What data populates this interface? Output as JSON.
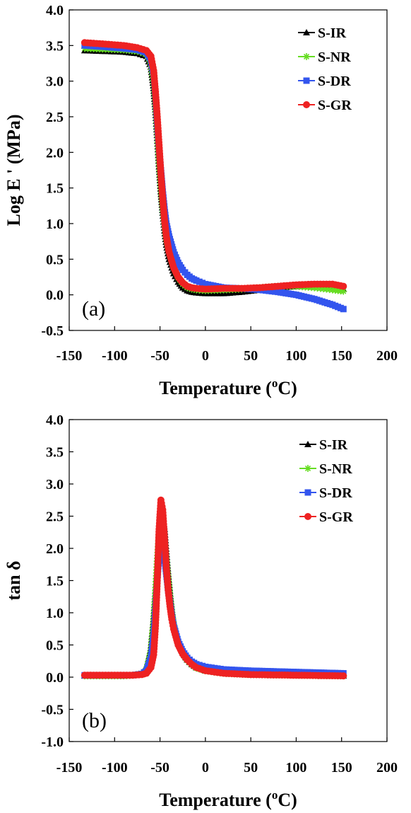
{
  "colors": {
    "S-IR": "#000000",
    "S-NR": "#66dd22",
    "S-DR": "#3355ee",
    "S-GR": "#ee2222"
  },
  "chart_data": [
    {
      "type": "scatter",
      "panel_label": "(a)",
      "xlabel": "Temperature (",
      "xlabel_sup": "o",
      "xlabel_suffix": "C)",
      "ylabel": "Log E ' (MPa)",
      "xlim": [
        -150,
        200
      ],
      "ylim": [
        -0.5,
        4.0
      ],
      "xticks": [
        -150,
        -100,
        -50,
        0,
        50,
        100,
        150,
        200
      ],
      "yticks": [
        "-0.5",
        "0.0",
        "0.5",
        "1.0",
        "1.5",
        "2.0",
        "2.5",
        "3.0",
        "3.5",
        "4.0"
      ],
      "legend_position": "top-right",
      "series": [
        {
          "name": "S-IR",
          "marker": "triangle",
          "x": [
            -133,
            -110,
            -90,
            -75,
            -65,
            -60,
            -57,
            -55,
            -53,
            -51,
            -49,
            -47,
            -45,
            -43,
            -40,
            -35,
            -30,
            -25,
            -20,
            -15,
            -10,
            0,
            20,
            40,
            60,
            80,
            100,
            120,
            140,
            152
          ],
          "y": [
            3.43,
            3.42,
            3.41,
            3.39,
            3.35,
            3.2,
            2.9,
            2.6,
            2.2,
            1.8,
            1.45,
            1.15,
            0.9,
            0.7,
            0.5,
            0.3,
            0.18,
            0.1,
            0.06,
            0.04,
            0.03,
            0.02,
            0.02,
            0.04,
            0.07,
            0.1,
            0.12,
            0.12,
            0.1,
            0.08
          ]
        },
        {
          "name": "S-NR",
          "marker": "star",
          "x": [
            -133,
            -110,
            -90,
            -75,
            -65,
            -60,
            -57,
            -55,
            -53,
            -51,
            -49,
            -47,
            -45,
            -43,
            -40,
            -35,
            -30,
            -25,
            -20,
            -15,
            -10,
            0,
            20,
            40,
            60,
            80,
            100,
            120,
            140,
            152
          ],
          "y": [
            3.46,
            3.45,
            3.44,
            3.42,
            3.38,
            3.25,
            3.0,
            2.7,
            2.3,
            1.9,
            1.55,
            1.25,
            1.0,
            0.8,
            0.6,
            0.38,
            0.24,
            0.15,
            0.1,
            0.08,
            0.07,
            0.06,
            0.07,
            0.08,
            0.1,
            0.12,
            0.12,
            0.1,
            0.07,
            0.05
          ]
        },
        {
          "name": "S-DR",
          "marker": "square",
          "x": [
            -133,
            -110,
            -90,
            -75,
            -65,
            -60,
            -57,
            -55,
            -53,
            -51,
            -49,
            -47,
            -45,
            -43,
            -40,
            -35,
            -30,
            -25,
            -20,
            -15,
            -10,
            0,
            20,
            40,
            60,
            80,
            100,
            120,
            140,
            152
          ],
          "y": [
            3.5,
            3.48,
            3.46,
            3.44,
            3.4,
            3.3,
            3.1,
            2.8,
            2.4,
            2.05,
            1.75,
            1.45,
            1.2,
            1.0,
            0.82,
            0.6,
            0.45,
            0.35,
            0.28,
            0.23,
            0.2,
            0.15,
            0.1,
            0.09,
            0.07,
            0.04,
            0.0,
            -0.06,
            -0.14,
            -0.2
          ]
        },
        {
          "name": "S-GR",
          "marker": "circle",
          "x": [
            -133,
            -110,
            -90,
            -75,
            -65,
            -60,
            -57,
            -55,
            -53,
            -51,
            -49,
            -47,
            -45,
            -43,
            -40,
            -35,
            -30,
            -25,
            -20,
            -15,
            -10,
            0,
            20,
            40,
            60,
            80,
            100,
            120,
            140,
            152
          ],
          "y": [
            3.54,
            3.52,
            3.5,
            3.47,
            3.43,
            3.35,
            3.15,
            2.85,
            2.5,
            2.1,
            1.7,
            1.35,
            1.05,
            0.82,
            0.6,
            0.38,
            0.25,
            0.17,
            0.12,
            0.1,
            0.09,
            0.08,
            0.09,
            0.09,
            0.1,
            0.12,
            0.14,
            0.15,
            0.15,
            0.12
          ]
        }
      ]
    },
    {
      "type": "scatter",
      "panel_label": "(b)",
      "xlabel": "Temperature (",
      "xlabel_sup": "o",
      "xlabel_suffix": "C)",
      "ylabel": "tan δ",
      "xlim": [
        -150,
        200
      ],
      "ylim": [
        -1.0,
        4.0
      ],
      "xticks": [
        -150,
        -100,
        -50,
        0,
        50,
        100,
        150,
        200
      ],
      "yticks": [
        "-1.0",
        "-0.5",
        "0.0",
        "0.5",
        "1.0",
        "1.5",
        "2.0",
        "2.5",
        "3.0",
        "3.5",
        "4.0"
      ],
      "legend_position": "top-right",
      "series": [
        {
          "name": "S-IR",
          "marker": "triangle",
          "x": [
            -133,
            -110,
            -90,
            -80,
            -70,
            -65,
            -60,
            -57,
            -55,
            -53,
            -51,
            -49,
            -47,
            -45,
            -43,
            -41,
            -39,
            -37,
            -35,
            -30,
            -25,
            -20,
            -15,
            -10,
            0,
            20,
            50,
            100,
            152
          ],
          "y": [
            0.02,
            0.02,
            0.02,
            0.03,
            0.06,
            0.15,
            0.45,
            0.9,
            1.3,
            1.75,
            2.2,
            2.45,
            2.5,
            2.3,
            1.95,
            1.6,
            1.3,
            1.05,
            0.85,
            0.55,
            0.38,
            0.27,
            0.2,
            0.15,
            0.1,
            0.06,
            0.04,
            0.03,
            0.02
          ]
        },
        {
          "name": "S-NR",
          "marker": "star",
          "x": [
            -133,
            -110,
            -90,
            -80,
            -70,
            -65,
            -60,
            -57,
            -55,
            -53,
            -51,
            -49,
            -47,
            -45,
            -43,
            -41,
            -39,
            -37,
            -35,
            -30,
            -25,
            -20,
            -15,
            -10,
            0,
            20,
            50,
            100,
            152
          ],
          "y": [
            0.02,
            0.02,
            0.02,
            0.03,
            0.05,
            0.12,
            0.4,
            0.85,
            1.3,
            1.8,
            2.2,
            2.35,
            2.3,
            2.1,
            1.8,
            1.5,
            1.25,
            1.0,
            0.82,
            0.52,
            0.36,
            0.26,
            0.19,
            0.14,
            0.1,
            0.06,
            0.04,
            0.03,
            0.02
          ]
        },
        {
          "name": "S-DR",
          "marker": "square",
          "x": [
            -133,
            -110,
            -90,
            -80,
            -70,
            -65,
            -60,
            -57,
            -55,
            -53,
            -51,
            -49,
            -47,
            -45,
            -43,
            -41,
            -39,
            -37,
            -35,
            -30,
            -25,
            -20,
            -15,
            -10,
            0,
            20,
            50,
            100,
            152
          ],
          "y": [
            0.03,
            0.03,
            0.03,
            0.03,
            0.05,
            0.1,
            0.3,
            0.65,
            1.05,
            1.5,
            1.9,
            2.1,
            2.05,
            1.85,
            1.6,
            1.35,
            1.15,
            0.95,
            0.8,
            0.55,
            0.4,
            0.3,
            0.24,
            0.2,
            0.16,
            0.12,
            0.1,
            0.08,
            0.06
          ]
        },
        {
          "name": "S-GR",
          "marker": "circle",
          "x": [
            -133,
            -110,
            -90,
            -80,
            -70,
            -65,
            -60,
            -57,
            -55,
            -53,
            -51,
            -49,
            -47,
            -45,
            -43,
            -41,
            -39,
            -37,
            -35,
            -30,
            -25,
            -20,
            -15,
            -10,
            0,
            20,
            50,
            100,
            152
          ],
          "y": [
            0.03,
            0.03,
            0.03,
            0.03,
            0.04,
            0.06,
            0.15,
            0.35,
            0.8,
            1.5,
            2.3,
            2.75,
            2.6,
            2.15,
            1.7,
            1.35,
            1.1,
            0.9,
            0.75,
            0.5,
            0.36,
            0.27,
            0.2,
            0.15,
            0.1,
            0.06,
            0.04,
            0.03,
            0.02
          ]
        }
      ]
    }
  ]
}
